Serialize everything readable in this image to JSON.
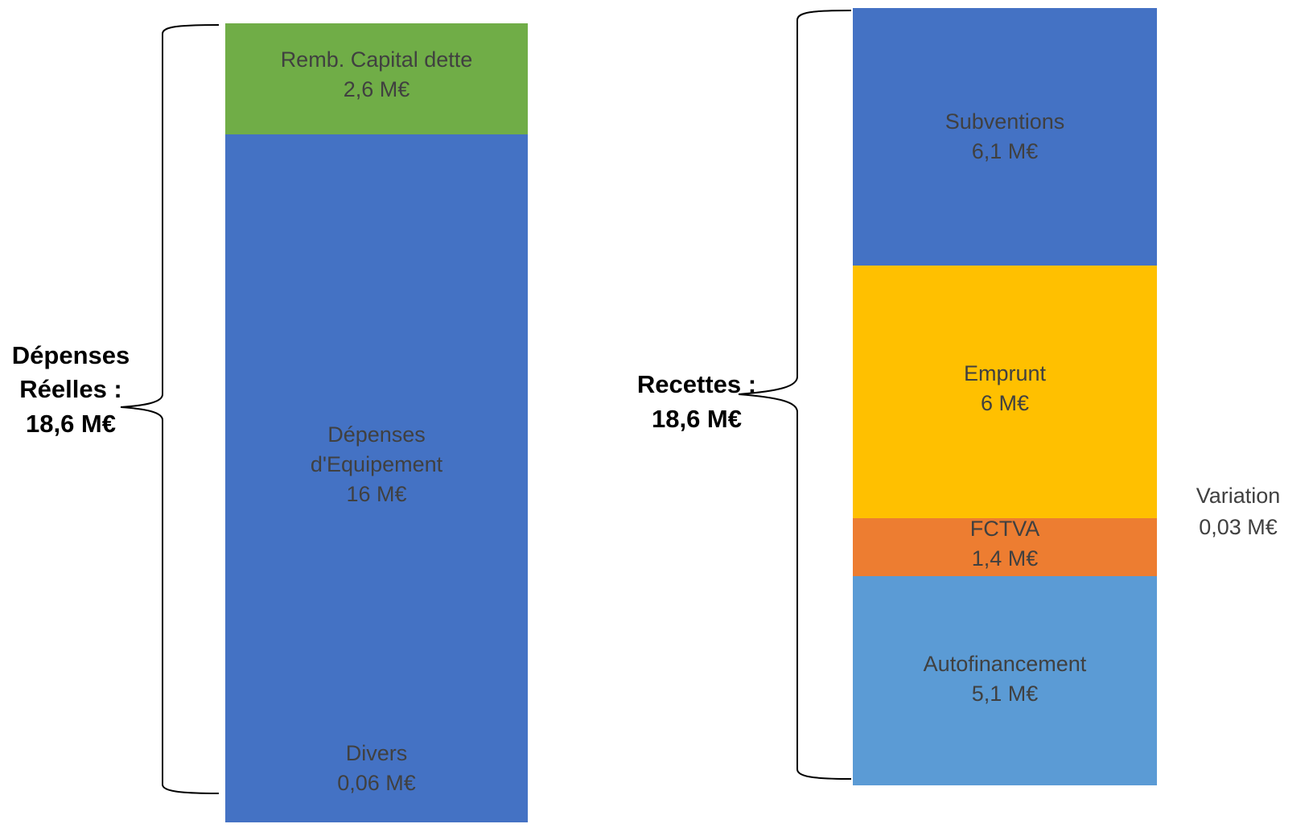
{
  "chart_data": [
    {
      "type": "bar",
      "stacked": true,
      "side_label_lines": [
        "Dépenses",
        "Réelles :",
        "18,6 M€"
      ],
      "total": 18.6,
      "segments": [
        {
          "name": "Divers",
          "value_text": "0,06 M€",
          "value": 0.06,
          "color": "#4472C4"
        },
        {
          "name": "Dépenses d'Equipement",
          "name_lines": [
            "Dépenses",
            "d'Equipement"
          ],
          "value_text": "16 M€",
          "value": 16,
          "color": "#4472C4"
        },
        {
          "name": "Remb. Capital dette",
          "value_text": "2,6 M€",
          "value": 2.6,
          "color": "#70AD47"
        }
      ]
    },
    {
      "type": "bar",
      "stacked": true,
      "side_label_lines": [
        "Recettes :",
        "18,6 M€"
      ],
      "total": 18.6,
      "segments": [
        {
          "name": "Autofinancement",
          "value_text": "5,1 M€",
          "value": 5.1,
          "color": "#5B9BD5"
        },
        {
          "name": "FCTVA",
          "value_text": "1,4 M€",
          "value": 1.4,
          "color": "#ED7D31"
        },
        {
          "name": "Emprunt",
          "value_text": "6 M€",
          "value": 6,
          "color": "#FFC000"
        },
        {
          "name": "Subventions",
          "value_text": "6,1 M€",
          "value": 6.1,
          "color": "#4472C4"
        }
      ],
      "outside_annotation": {
        "name": "Variation",
        "value_text": "0,03 M€",
        "value": 0.03
      }
    }
  ]
}
